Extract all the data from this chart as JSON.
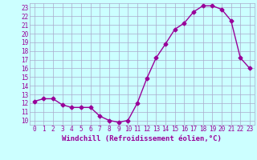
{
  "x": [
    0,
    1,
    2,
    3,
    4,
    5,
    6,
    7,
    8,
    9,
    10,
    11,
    12,
    13,
    14,
    15,
    16,
    17,
    18,
    19,
    20,
    21,
    22,
    23
  ],
  "y": [
    12.2,
    12.5,
    12.5,
    11.8,
    11.5,
    11.5,
    11.5,
    10.5,
    10.0,
    9.8,
    10.0,
    12.0,
    14.8,
    17.2,
    18.8,
    20.5,
    21.2,
    22.5,
    23.2,
    23.2,
    22.8,
    21.5,
    17.2,
    16.0
  ],
  "line_color": "#990099",
  "marker": "D",
  "marker_size": 2.5,
  "bg_color": "#ccffff",
  "grid_color": "#aaaacc",
  "xlabel": "Windchill (Refroidissement éolien,°C)",
  "xlabel_color": "#990099",
  "tick_color": "#990099",
  "ylim": [
    9.5,
    23.5
  ],
  "xlim": [
    -0.5,
    23.5
  ],
  "yticks": [
    10,
    11,
    12,
    13,
    14,
    15,
    16,
    17,
    18,
    19,
    20,
    21,
    22,
    23
  ],
  "xticks": [
    0,
    1,
    2,
    3,
    4,
    5,
    6,
    7,
    8,
    9,
    10,
    11,
    12,
    13,
    14,
    15,
    16,
    17,
    18,
    19,
    20,
    21,
    22,
    23
  ],
  "tick_fontsize": 5.5,
  "xlabel_fontsize": 6.5,
  "line_width": 1.0
}
